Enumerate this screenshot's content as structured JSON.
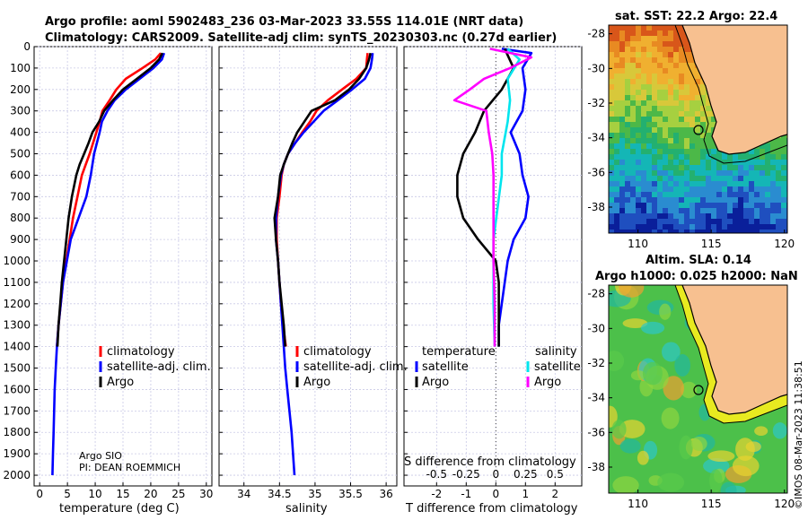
{
  "header": {
    "title_line1": "Argo profile: aoml 5902483_236 03-Mar-2023 33.55S 114.01E (NRT data)",
    "title_line2": "Climatology: CARS2009. Satellite-adj clim: synTS_20230303.nc (0.27d earlier)"
  },
  "credit": {
    "org": "Argo SIO",
    "pi": "PI: DEAN ROEMMICH"
  },
  "timestamp": "©IMOS 08-Mar-2023 11:38:51",
  "colors": {
    "climatology": "#ff0000",
    "satellite": "#0000ff",
    "argo": "#000000",
    "sat_diff": "#00e5ee",
    "argo_s_diff": "#ff00ff",
    "land": "#f7c090",
    "coast": "#000000"
  },
  "depth_axis": {
    "ticks": [
      "0",
      "100",
      "200",
      "300",
      "400",
      "500",
      "600",
      "700",
      "800",
      "900",
      "1000",
      "1100",
      "1200",
      "1300",
      "1400",
      "1500",
      "1600",
      "1700",
      "1800",
      "1900",
      "2000"
    ],
    "ylim": [
      2050,
      0
    ]
  },
  "chart_data": [
    {
      "type": "line",
      "id": "temperature",
      "xlabel": "temperature (deg C)",
      "xlim": [
        -1,
        31
      ],
      "xticks": [
        "0",
        "5",
        "10",
        "15",
        "20",
        "25",
        "30"
      ],
      "ylim": [
        2050,
        0
      ],
      "legend": [
        "climatology",
        "satellite-adj. clim.",
        "Argo"
      ],
      "series": [
        {
          "name": "climatology",
          "points": [
            [
              21.8,
              30
            ],
            [
              20.8,
              60
            ],
            [
              18.5,
              100
            ],
            [
              15.5,
              150
            ],
            [
              13.8,
              200
            ],
            [
              12.6,
              250
            ],
            [
              11.3,
              300
            ],
            [
              10.8,
              350
            ],
            [
              10.2,
              400
            ],
            [
              9.6,
              450
            ],
            [
              9,
              500
            ],
            [
              8.3,
              550
            ],
            [
              7.6,
              600
            ],
            [
              6.8,
              700
            ],
            [
              6,
              800
            ],
            [
              5.4,
              900
            ],
            [
              4.8,
              1000
            ],
            [
              4.2,
              1100
            ],
            [
              3.8,
              1200
            ],
            [
              3.4,
              1300
            ],
            [
              3.1,
              1400
            ]
          ]
        },
        {
          "name": "satellite-adj. clim.",
          "points": [
            [
              22.4,
              30
            ],
            [
              22,
              60
            ],
            [
              20.5,
              100
            ],
            [
              18,
              150
            ],
            [
              15.5,
              200
            ],
            [
              13.5,
              250
            ],
            [
              12.2,
              300
            ],
            [
              11.2,
              350
            ],
            [
              10.8,
              400
            ],
            [
              10.3,
              450
            ],
            [
              9.8,
              500
            ],
            [
              9.2,
              600
            ],
            [
              8.4,
              700
            ],
            [
              7,
              800
            ],
            [
              5.6,
              900
            ],
            [
              4.9,
              1000
            ],
            [
              4.2,
              1100
            ],
            [
              3.8,
              1200
            ],
            [
              3.4,
              1300
            ],
            [
              3.1,
              1400
            ],
            [
              2.9,
              1500
            ],
            [
              2.7,
              1600
            ],
            [
              2.6,
              1700
            ],
            [
              2.5,
              1800
            ],
            [
              2.4,
              1900
            ],
            [
              2.3,
              2000
            ]
          ]
        },
        {
          "name": "Argo",
          "points": [
            [
              22.1,
              30
            ],
            [
              21.5,
              60
            ],
            [
              20,
              100
            ],
            [
              17.5,
              150
            ],
            [
              15,
              200
            ],
            [
              13.2,
              250
            ],
            [
              11.6,
              300
            ],
            [
              10.7,
              350
            ],
            [
              9.5,
              400
            ],
            [
              8.8,
              450
            ],
            [
              8,
              500
            ],
            [
              7.2,
              550
            ],
            [
              6.6,
              600
            ],
            [
              5.8,
              700
            ],
            [
              5.2,
              800
            ],
            [
              4.8,
              900
            ],
            [
              4.4,
              1000
            ],
            [
              4,
              1100
            ],
            [
              3.7,
              1200
            ],
            [
              3.4,
              1300
            ],
            [
              3.2,
              1400
            ]
          ]
        }
      ]
    },
    {
      "type": "line",
      "id": "salinity",
      "xlabel": "salinity",
      "xlim": [
        33.65,
        36.15
      ],
      "xticks": [
        "34",
        "34.5",
        "35",
        "35.5",
        "36"
      ],
      "ylim": [
        2050,
        0
      ],
      "legend": [
        "climatology",
        "satellite-adj. clim.",
        "Argo"
      ],
      "series": [
        {
          "name": "climatology",
          "points": [
            [
              35.74,
              30
            ],
            [
              35.73,
              60
            ],
            [
              35.72,
              100
            ],
            [
              35.58,
              150
            ],
            [
              35.38,
              200
            ],
            [
              35.18,
              250
            ],
            [
              35.02,
              300
            ],
            [
              34.93,
              350
            ],
            [
              34.82,
              400
            ],
            [
              34.72,
              450
            ],
            [
              34.62,
              500
            ],
            [
              34.56,
              550
            ],
            [
              34.53,
              600
            ],
            [
              34.5,
              700
            ],
            [
              34.46,
              800
            ],
            [
              34.46,
              900
            ],
            [
              34.48,
              1000
            ],
            [
              34.5,
              1100
            ],
            [
              34.52,
              1200
            ],
            [
              34.55,
              1300
            ],
            [
              34.59,
              1400
            ]
          ]
        },
        {
          "name": "satellite-adj. clim.",
          "points": [
            [
              35.81,
              30
            ],
            [
              35.8,
              60
            ],
            [
              35.78,
              100
            ],
            [
              35.7,
              150
            ],
            [
              35.52,
              200
            ],
            [
              35.32,
              250
            ],
            [
              35.12,
              300
            ],
            [
              34.98,
              350
            ],
            [
              34.84,
              400
            ],
            [
              34.72,
              450
            ],
            [
              34.62,
              500
            ],
            [
              34.56,
              550
            ],
            [
              34.52,
              600
            ],
            [
              34.48,
              700
            ],
            [
              34.45,
              800
            ],
            [
              34.45,
              900
            ],
            [
              34.48,
              1000
            ],
            [
              34.5,
              1100
            ],
            [
              34.52,
              1200
            ],
            [
              34.54,
              1300
            ],
            [
              34.56,
              1400
            ],
            [
              34.58,
              1500
            ],
            [
              34.61,
              1600
            ],
            [
              34.64,
              1700
            ],
            [
              34.67,
              1800
            ],
            [
              34.69,
              1900
            ],
            [
              34.71,
              2000
            ]
          ]
        },
        {
          "name": "Argo",
          "points": [
            [
              35.78,
              30
            ],
            [
              35.76,
              60
            ],
            [
              35.72,
              100
            ],
            [
              35.62,
              150
            ],
            [
              35.48,
              200
            ],
            [
              35.28,
              250
            ],
            [
              34.95,
              300
            ],
            [
              34.85,
              350
            ],
            [
              34.75,
              400
            ],
            [
              34.68,
              450
            ],
            [
              34.62,
              500
            ],
            [
              34.56,
              550
            ],
            [
              34.51,
              600
            ],
            [
              34.48,
              700
            ],
            [
              34.43,
              800
            ],
            [
              34.45,
              900
            ],
            [
              34.48,
              1000
            ],
            [
              34.5,
              1100
            ],
            [
              34.53,
              1200
            ],
            [
              34.56,
              1300
            ],
            [
              34.58,
              1400
            ]
          ]
        }
      ]
    },
    {
      "type": "line",
      "id": "differences",
      "xlabel": "T difference from climatology",
      "xlabel_top": "S difference from climatology",
      "xlim_T": [
        -3.1,
        2.9
      ],
      "xticks_T": [
        "-2",
        "-1",
        "0",
        "1",
        "2"
      ],
      "xlim_S": [
        -0.775,
        0.725
      ],
      "xticks_S": [
        "-0.5",
        "-0.25",
        "0",
        "0.25",
        "0.5"
      ],
      "ylim": [
        2050,
        0
      ],
      "legend_titles": [
        "temperature",
        "salinity"
      ],
      "legend": [
        "satellite",
        "Argo",
        "satellite",
        "Argo"
      ],
      "series": [
        {
          "name": "temperature satellite",
          "axis": "T",
          "points": [
            [
              0.2,
              10
            ],
            [
              1.2,
              30
            ],
            [
              0.9,
              100
            ],
            [
              1,
              200
            ],
            [
              0.9,
              300
            ],
            [
              0.5,
              400
            ],
            [
              0.8,
              500
            ],
            [
              0.9,
              600
            ],
            [
              1.1,
              700
            ],
            [
              1,
              800
            ],
            [
              0.6,
              900
            ],
            [
              0.4,
              1000
            ],
            [
              0.3,
              1100
            ],
            [
              0.2,
              1200
            ],
            [
              0.1,
              1300
            ],
            [
              0.1,
              1400
            ]
          ]
        },
        {
          "name": "temperature Argo",
          "axis": "T",
          "points": [
            [
              0.3,
              10
            ],
            [
              0.6,
              100
            ],
            [
              0.2,
              200
            ],
            [
              -0.4,
              300
            ],
            [
              -0.7,
              400
            ],
            [
              -1.1,
              500
            ],
            [
              -1.3,
              600
            ],
            [
              -1.3,
              700
            ],
            [
              -1.1,
              800
            ],
            [
              -0.6,
              900
            ],
            [
              0,
              1000
            ],
            [
              0.1,
              1100
            ],
            [
              0.1,
              1200
            ],
            [
              0.1,
              1300
            ],
            [
              0.1,
              1400
            ]
          ]
        },
        {
          "name": "salinity satellite",
          "axis": "S",
          "points": [
            [
              0.1,
              10
            ],
            [
              0.2,
              60
            ],
            [
              0.1,
              150
            ],
            [
              0.12,
              250
            ],
            [
              0.1,
              350
            ],
            [
              0.05,
              500
            ],
            [
              0.05,
              600
            ],
            [
              -0.02,
              900
            ],
            [
              -0.02,
              1000
            ],
            [
              -0.02,
              1200
            ],
            [
              -0.01,
              1400
            ]
          ]
        },
        {
          "name": "salinity Argo",
          "axis": "S",
          "points": [
            [
              -0.05,
              10
            ],
            [
              0.3,
              50
            ],
            [
              0.12,
              100
            ],
            [
              -0.1,
              150
            ],
            [
              -0.22,
              200
            ],
            [
              -0.35,
              250
            ],
            [
              -0.08,
              300
            ],
            [
              -0.06,
              400
            ],
            [
              -0.03,
              500
            ],
            [
              -0.02,
              600
            ],
            [
              -0.02,
              700
            ],
            [
              -0.02,
              800
            ],
            [
              -0.02,
              1000
            ],
            [
              -0.01,
              1200
            ],
            [
              -0.01,
              1400
            ]
          ]
        }
      ]
    },
    {
      "type": "heatmap",
      "id": "sst_map",
      "title": "sat. SST: 22.2 Argo: 22.4",
      "xticks": [
        "110",
        "115",
        "120"
      ],
      "yticks": [
        "-28",
        "-30",
        "-32",
        "-34",
        "-36",
        "-38"
      ],
      "xlim": [
        108,
        120.2
      ],
      "ylim": [
        -39.5,
        -27.5
      ],
      "marker": {
        "lon": 114.01,
        "lat": -33.55
      }
    },
    {
      "type": "heatmap",
      "id": "sla_map",
      "title_line1": "Altim. SLA: 0.14",
      "title_line2": "Argo h1000: 0.025 h2000: NaN",
      "xticks": [
        "110",
        "115",
        "120"
      ],
      "yticks": [
        "-28",
        "-30",
        "-32",
        "-34",
        "-36",
        "-38"
      ],
      "xlim": [
        108,
        120.2
      ],
      "ylim": [
        -39.5,
        -27.5
      ],
      "marker": {
        "lon": 114.01,
        "lat": -33.55
      }
    }
  ]
}
